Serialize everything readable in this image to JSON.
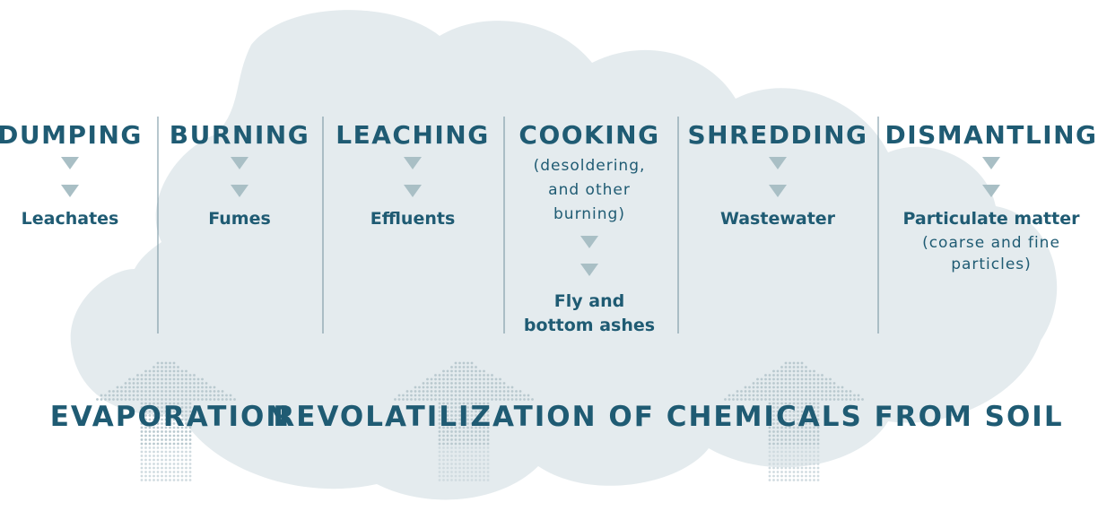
{
  "columns": [
    {
      "title": "DUMPING",
      "subtitle_lines": [],
      "output_lines": [
        "Leachates"
      ],
      "note_lines": []
    },
    {
      "title": "BURNING",
      "subtitle_lines": [],
      "output_lines": [
        "Fumes"
      ],
      "note_lines": []
    },
    {
      "title": "LEACHING",
      "subtitle_lines": [],
      "output_lines": [
        "Effluents"
      ],
      "note_lines": []
    },
    {
      "title": "COOKING",
      "subtitle_lines": [
        "(desoldering,",
        "and other",
        "burning)"
      ],
      "output_lines": [
        "Fly and",
        "bottom ashes"
      ],
      "note_lines": []
    },
    {
      "title": "SHREDDING",
      "subtitle_lines": [],
      "output_lines": [
        "Wastewater"
      ],
      "note_lines": []
    },
    {
      "title": "DISMANTLING",
      "subtitle_lines": [],
      "output_lines": [
        "Particulate matter"
      ],
      "note_lines": [
        "(coarse and fine",
        "particles)"
      ]
    }
  ],
  "bottom_labels": [
    "EVAPORATION",
    "REVOLATILIZATION OF CHEMICALS FROM SOIL"
  ]
}
